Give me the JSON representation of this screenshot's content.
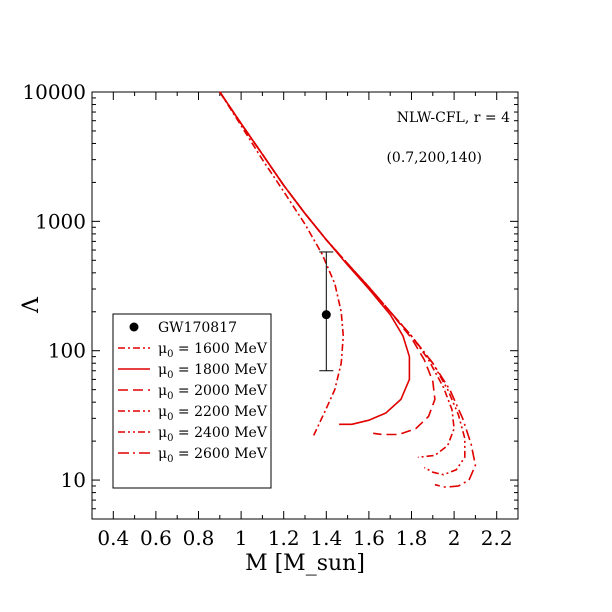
{
  "chart_data": {
    "type": "line",
    "title": "",
    "xlabel": "M [M_sun]",
    "ylabel": "Λ",
    "xlim": [
      0.3,
      2.3
    ],
    "ylim": [
      5,
      10000
    ],
    "y_scale": "log",
    "x_ticks": [
      0.4,
      0.6,
      0.8,
      1,
      1.2,
      1.4,
      1.6,
      1.8,
      2,
      2.2
    ],
    "x_tick_labels": [
      "0.4",
      "0.6",
      "0.8",
      "1",
      "1.2",
      "1.4",
      "1.6",
      "1.8",
      "2",
      "2.2"
    ],
    "y_ticks": [
      10,
      100,
      1000,
      10000
    ],
    "y_tick_labels": [
      "10",
      "100",
      "1000",
      "10000"
    ],
    "annotations": [
      "NLW-CFL, r = 4",
      "(0.7,200,140)"
    ],
    "legend_position": "bottom-left",
    "line_color": "#e00000",
    "observation": {
      "name": "GW170817",
      "x": 1.4,
      "y": 190,
      "y_low": 70,
      "y_high": 580
    },
    "series": [
      {
        "name": "μ0 = 1600 MeV",
        "label_main": "μ",
        "label_sub": "0",
        "label_rest": " = 1600 MeV",
        "style": "dot-dash",
        "points": [
          [
            0.9,
            10000
          ],
          [
            1.0,
            5500
          ],
          [
            1.1,
            3000
          ],
          [
            1.2,
            1700
          ],
          [
            1.3,
            950
          ],
          [
            1.38,
            560
          ],
          [
            1.44,
            330
          ],
          [
            1.47,
            200
          ],
          [
            1.48,
            130
          ],
          [
            1.47,
            80
          ],
          [
            1.44,
            50
          ],
          [
            1.39,
            33
          ],
          [
            1.34,
            22
          ]
        ]
      },
      {
        "name": "μ0 = 1800 MeV",
        "label_main": "μ",
        "label_sub": "0",
        "label_rest": " = 1800 MeV",
        "style": "solid",
        "points": [
          [
            0.9,
            10000
          ],
          [
            1.0,
            5700
          ],
          [
            1.1,
            3300
          ],
          [
            1.2,
            1900
          ],
          [
            1.3,
            1150
          ],
          [
            1.4,
            720
          ],
          [
            1.5,
            460
          ],
          [
            1.6,
            300
          ],
          [
            1.7,
            190
          ],
          [
            1.76,
            130
          ],
          [
            1.79,
            90
          ],
          [
            1.79,
            60
          ],
          [
            1.75,
            42
          ],
          [
            1.68,
            33
          ],
          [
            1.6,
            29
          ],
          [
            1.52,
            27
          ],
          [
            1.46,
            27
          ]
        ]
      },
      {
        "name": "μ0 = 2000 MeV",
        "label_main": "μ",
        "label_sub": "0",
        "label_rest": " = 2000 MeV",
        "style": "dash",
        "points": [
          [
            0.9,
            10000
          ],
          [
            1.0,
            5700
          ],
          [
            1.1,
            3300
          ],
          [
            1.2,
            1900
          ],
          [
            1.3,
            1150
          ],
          [
            1.4,
            720
          ],
          [
            1.5,
            470
          ],
          [
            1.6,
            310
          ],
          [
            1.7,
            200
          ],
          [
            1.8,
            125
          ],
          [
            1.86,
            85
          ],
          [
            1.9,
            58
          ],
          [
            1.91,
            42
          ],
          [
            1.88,
            31
          ],
          [
            1.82,
            25
          ],
          [
            1.74,
            22.5
          ],
          [
            1.66,
            22.5
          ],
          [
            1.62,
            23
          ]
        ]
      },
      {
        "name": "μ0 = 2200 MeV",
        "label_main": "μ",
        "label_sub": "0",
        "label_rest": " = 2200 MeV",
        "style": "dot-dash",
        "points": [
          [
            0.9,
            10000
          ],
          [
            1.0,
            5700
          ],
          [
            1.1,
            3300
          ],
          [
            1.2,
            1900
          ],
          [
            1.3,
            1150
          ],
          [
            1.4,
            720
          ],
          [
            1.5,
            470
          ],
          [
            1.6,
            310
          ],
          [
            1.7,
            200
          ],
          [
            1.8,
            130
          ],
          [
            1.88,
            85
          ],
          [
            1.95,
            52
          ],
          [
            1.99,
            35
          ],
          [
            2.0,
            25
          ],
          [
            1.97,
            18.5
          ],
          [
            1.91,
            15.5
          ],
          [
            1.83,
            15
          ]
        ]
      },
      {
        "name": "μ0 = 2400 MeV",
        "label_main": "μ",
        "label_sub": "0",
        "label_rest": " = 2400 MeV",
        "style": "dot-dot-dash",
        "points": [
          [
            0.9,
            10000
          ],
          [
            1.0,
            5700
          ],
          [
            1.1,
            3300
          ],
          [
            1.2,
            1900
          ],
          [
            1.3,
            1150
          ],
          [
            1.4,
            720
          ],
          [
            1.5,
            470
          ],
          [
            1.6,
            310
          ],
          [
            1.7,
            200
          ],
          [
            1.8,
            130
          ],
          [
            1.9,
            80
          ],
          [
            1.97,
            50
          ],
          [
            2.02,
            32
          ],
          [
            2.05,
            21
          ],
          [
            2.05,
            15
          ],
          [
            2.01,
            12
          ],
          [
            1.95,
            11
          ],
          [
            1.9,
            11.5
          ],
          [
            1.86,
            12.5
          ]
        ]
      },
      {
        "name": "μ0 = 2600 MeV",
        "label_main": "μ",
        "label_sub": "0",
        "label_rest": " = 2600 MeV",
        "style": "dash-dot-long",
        "points": [
          [
            0.9,
            10000
          ],
          [
            1.0,
            5700
          ],
          [
            1.1,
            3300
          ],
          [
            1.2,
            1900
          ],
          [
            1.3,
            1150
          ],
          [
            1.4,
            720
          ],
          [
            1.5,
            470
          ],
          [
            1.6,
            310
          ],
          [
            1.7,
            200
          ],
          [
            1.8,
            130
          ],
          [
            1.9,
            80
          ],
          [
            1.98,
            50
          ],
          [
            2.04,
            30
          ],
          [
            2.08,
            19
          ],
          [
            2.1,
            13
          ],
          [
            2.07,
            10
          ],
          [
            2.02,
            9
          ],
          [
            1.96,
            8.8
          ],
          [
            1.91,
            9.2
          ]
        ]
      }
    ]
  }
}
